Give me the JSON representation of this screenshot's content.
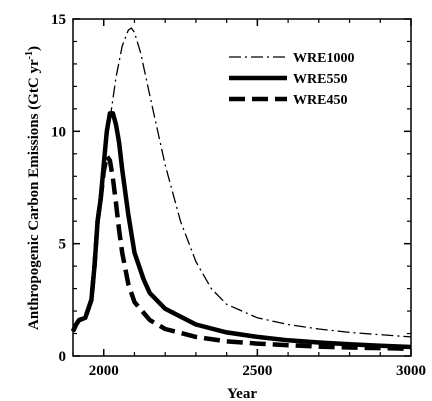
{
  "chart_data": {
    "type": "line",
    "title": "",
    "xlabel": "Year",
    "ylabel_main": "Anthropogenic Carbon Emissions (GtC yr",
    "ylabel_sup": "-1",
    "ylabel_close": ")",
    "xlim": [
      1900,
      3000
    ],
    "ylim": [
      0,
      15
    ],
    "xticks": [
      2000,
      2500,
      3000
    ],
    "yticks": [
      0,
      5,
      10,
      15
    ],
    "xtick_labels": [
      "2000",
      "2500",
      "3000"
    ],
    "ytick_labels": [
      "0",
      "5",
      "10",
      "15"
    ],
    "grid": false,
    "legend": "top-right",
    "series": [
      {
        "name": "WRE1000",
        "style": "dashdot",
        "width": 1.3,
        "x": [
          1900,
          1910,
          1920,
          1940,
          1960,
          1970,
          1985,
          2000,
          2020,
          2040,
          2060,
          2080,
          2090,
          2100,
          2120,
          2150,
          2200,
          2250,
          2300,
          2350,
          2400,
          2500,
          2600,
          2700,
          2800,
          2900,
          3000
        ],
        "y": [
          1.1,
          1.4,
          1.6,
          1.7,
          2.5,
          4.0,
          6.2,
          8.5,
          10.5,
          12.4,
          13.8,
          14.5,
          14.6,
          14.4,
          13.5,
          11.6,
          8.5,
          6.0,
          4.2,
          3.0,
          2.3,
          1.7,
          1.4,
          1.2,
          1.05,
          0.95,
          0.85
        ]
      },
      {
        "name": "WRE550",
        "style": "solid",
        "width": 4.5,
        "x": [
          1900,
          1910,
          1920,
          1940,
          1960,
          1970,
          1980,
          1990,
          2000,
          2010,
          2020,
          2030,
          2040,
          2050,
          2060,
          2080,
          2100,
          2130,
          2150,
          2200,
          2300,
          2400,
          2500,
          2600,
          2700,
          2800,
          2900,
          3000
        ],
        "y": [
          1.1,
          1.4,
          1.6,
          1.7,
          2.5,
          4.0,
          6.0,
          7.0,
          8.5,
          10.0,
          10.8,
          10.8,
          10.3,
          9.5,
          8.3,
          6.3,
          4.6,
          3.4,
          2.8,
          2.1,
          1.4,
          1.05,
          0.85,
          0.7,
          0.6,
          0.52,
          0.46,
          0.4
        ]
      },
      {
        "name": "WRE450",
        "style": "dashed",
        "width": 4.5,
        "x": [
          1900,
          1910,
          1920,
          1940,
          1960,
          1970,
          1980,
          1990,
          2000,
          2010,
          2020,
          2030,
          2040,
          2050,
          2060,
          2080,
          2100,
          2150,
          2200,
          2300,
          2400,
          2500,
          2600,
          2700,
          2800,
          3000
        ],
        "y": [
          1.1,
          1.4,
          1.6,
          1.7,
          2.5,
          4.0,
          6.0,
          7.0,
          8.2,
          8.9,
          8.7,
          7.9,
          6.8,
          5.6,
          4.6,
          3.2,
          2.4,
          1.6,
          1.2,
          0.85,
          0.65,
          0.55,
          0.48,
          0.42,
          0.38,
          0.32
        ]
      }
    ]
  },
  "colors": {
    "line": "#000000",
    "axis": "#000000",
    "background": "#ffffff"
  }
}
